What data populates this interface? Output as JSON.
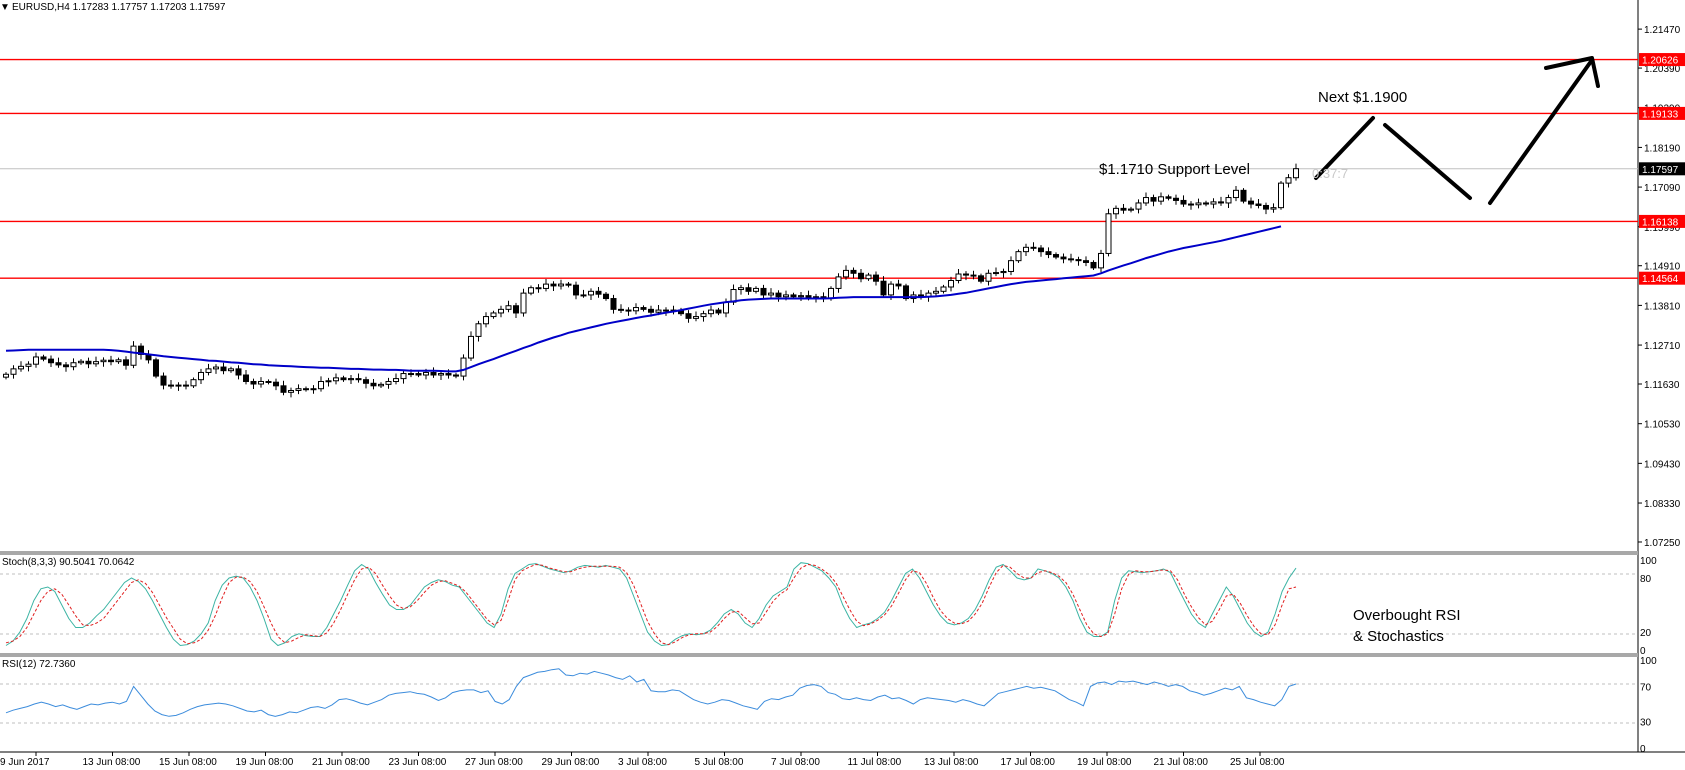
{
  "header": {
    "arrow_glyph": "▼",
    "text": "EURUSD,H4  1.17283 1.17757 1.17203 1.17597"
  },
  "indicators": {
    "stoch": {
      "label": "Stoch(8,3,3) 90.5041 70.0642",
      "main_color": "#3cb4a4",
      "signal_color": "#e02020"
    },
    "rsi": {
      "label": "RSI(12) 72.7360",
      "color": "#3c8cdc"
    }
  },
  "annotations": {
    "next": "Next $1.1900",
    "support": "$1.1710 Support Level",
    "timer": "0:37:7",
    "overbought_line1": "Overbought RSI",
    "overbought_line2": "& Stochastics"
  },
  "chart_data": [
    {
      "type": "candlestick",
      "symbol": "EURUSD",
      "timeframe": "H4",
      "ylim": [
        1.07,
        1.22
      ],
      "y_ticks": [
        "1.21470",
        "1.20390",
        "1.19290",
        "1.18190",
        "1.17090",
        "1.15990",
        "1.14910",
        "1.13810",
        "1.12710",
        "1.11630",
        "1.10530",
        "1.09430",
        "1.08330",
        "1.07250"
      ],
      "x_ticks": [
        "9 Jun 2017",
        "13 Jun 08:00",
        "15 Jun 08:00",
        "19 Jun 08:00",
        "21 Jun 08:00",
        "23 Jun 08:00",
        "27 Jun 08:00",
        "29 Jun 08:00",
        "3 Jul 08:00",
        "5 Jul 08:00",
        "7 Jul 08:00",
        "11 Jul 08:00",
        "13 Jul 08:00",
        "17 Jul 08:00",
        "19 Jul 08:00",
        "21 Jul 08:00",
        "25 Jul 08:00"
      ],
      "current_price": "1.17597",
      "levels": [
        {
          "label": "1.20626",
          "color": "#ff0000"
        },
        {
          "label": "1.19133",
          "color": "#ff0000"
        },
        {
          "label": "1.16138",
          "color": "#ff0000"
        },
        {
          "label": "1.14564",
          "color": "#ff0000"
        }
      ],
      "close": [
        1.119,
        1.1205,
        1.1212,
        1.1218,
        1.1238,
        1.1232,
        1.1222,
        1.1216,
        1.1211,
        1.1222,
        1.1226,
        1.1219,
        1.1225,
        1.1229,
        1.1225,
        1.123,
        1.1215,
        1.1268,
        1.1245,
        1.123,
        1.1185,
        1.116,
        1.1158,
        1.116,
        1.1158,
        1.1175,
        1.1195,
        1.1205,
        1.121,
        1.12,
        1.1205,
        1.1188,
        1.117,
        1.1163,
        1.117,
        1.1168,
        1.1158,
        1.114,
        1.1145,
        1.115,
        1.1148,
        1.115,
        1.117,
        1.1172,
        1.118,
        1.1175,
        1.1178,
        1.1175,
        1.1165,
        1.1158,
        1.1162,
        1.117,
        1.1178,
        1.1192,
        1.1192,
        1.1188,
        1.1195,
        1.1188,
        1.1192,
        1.1188,
        1.1185,
        1.1235,
        1.1295,
        1.133,
        1.135,
        1.136,
        1.137,
        1.138,
        1.136,
        1.1415,
        1.143,
        1.1428,
        1.144,
        1.1435,
        1.144,
        1.1437,
        1.141,
        1.141,
        1.142,
        1.1412,
        1.14,
        1.137,
        1.1368,
        1.1366,
        1.1375,
        1.137,
        1.1362,
        1.1368,
        1.1366,
        1.1368,
        1.1358,
        1.1345,
        1.135,
        1.1358,
        1.1368,
        1.136,
        1.139,
        1.1425,
        1.143,
        1.142,
        1.1428,
        1.141,
        1.1415,
        1.1405,
        1.141,
        1.1405,
        1.1408,
        1.1403,
        1.1405,
        1.14,
        1.1428,
        1.146,
        1.1478,
        1.147,
        1.1455,
        1.1465,
        1.1448,
        1.141,
        1.144,
        1.1435,
        1.14,
        1.141,
        1.1405,
        1.1415,
        1.142,
        1.1432,
        1.145,
        1.1468,
        1.1465,
        1.1463,
        1.1448,
        1.147,
        1.1472,
        1.1475,
        1.1505,
        1.153,
        1.1542,
        1.154,
        1.153,
        1.1522,
        1.1515,
        1.151,
        1.1508,
        1.1505,
        1.15,
        1.1485,
        1.1525,
        1.1635,
        1.165,
        1.1645,
        1.1648,
        1.1665,
        1.168,
        1.167,
        1.1682,
        1.1678,
        1.1672,
        1.1662,
        1.166,
        1.1665,
        1.1662,
        1.1668,
        1.1665,
        1.168,
        1.17,
        1.167,
        1.1662,
        1.1658,
        1.1648,
        1.1652,
        1.172,
        1.1735,
        1.176
      ],
      "ma_color": "#0000c8",
      "ma": [
        1.1255,
        1.1256,
        1.1257,
        1.1258,
        1.1258,
        1.1258,
        1.1258,
        1.1258,
        1.1258,
        1.1258,
        1.1258,
        1.1258,
        1.1258,
        1.1258,
        1.1257,
        1.1255,
        1.1253,
        1.125,
        1.1248,
        1.1245,
        1.1243,
        1.124,
        1.1238,
        1.1236,
        1.1234,
        1.1232,
        1.123,
        1.1228,
        1.1227,
        1.1225,
        1.1223,
        1.1222,
        1.122,
        1.1218,
        1.1217,
        1.1215,
        1.1214,
        1.1213,
        1.1212,
        1.1211,
        1.121,
        1.1209,
        1.1208,
        1.1208,
        1.1207,
        1.1206,
        1.1205,
        1.1205,
        1.1204,
        1.1203,
        1.1203,
        1.1202,
        1.1202,
        1.1201,
        1.12,
        1.12,
        1.12,
        1.12,
        1.1199,
        1.1198,
        1.1198,
        1.1202,
        1.121,
        1.1218,
        1.1225,
        1.1232,
        1.124,
        1.1248,
        1.1255,
        1.1263,
        1.127,
        1.1278,
        1.1285,
        1.1292,
        1.1298,
        1.1305,
        1.131,
        1.1315,
        1.132,
        1.1325,
        1.133,
        1.1334,
        1.1338,
        1.1342,
        1.1346,
        1.135,
        1.1353,
        1.1357,
        1.1361,
        1.1364,
        1.1368,
        1.1372,
        1.1376,
        1.138,
        1.1384,
        1.1387,
        1.139,
        1.1392,
        1.1395,
        1.1397,
        1.1398,
        1.1399,
        1.14,
        1.14,
        1.14,
        1.14,
        1.14,
        1.14,
        1.14,
        1.14,
        1.1401,
        1.1402,
        1.1403,
        1.1404,
        1.1404,
        1.1404,
        1.1404,
        1.1404,
        1.1404,
        1.1404,
        1.1404,
        1.1404,
        1.1404,
        1.1405,
        1.1406,
        1.1408,
        1.141,
        1.1413,
        1.1416,
        1.142,
        1.1424,
        1.1428,
        1.1432,
        1.1436,
        1.144,
        1.1443,
        1.1446,
        1.1448,
        1.145,
        1.1452,
        1.1454,
        1.1456,
        1.1458,
        1.146,
        1.1462,
        1.1464,
        1.147,
        1.1478,
        1.1485,
        1.1492,
        1.1498,
        1.1505,
        1.1512,
        1.1518,
        1.1524,
        1.153,
        1.1535,
        1.154,
        1.1544,
        1.1548,
        1.1552,
        1.1556,
        1.156,
        1.1565,
        1.157,
        1.1575,
        1.158,
        1.1585,
        1.159,
        1.1595,
        1.16
      ]
    },
    {
      "type": "line",
      "name": "Stoch(8,3,3)",
      "ylim": [
        0,
        100
      ],
      "y_ticks": [
        100,
        80,
        20,
        0
      ],
      "series": [
        {
          "values": [
            5,
            10,
            20,
            35,
            55,
            68,
            70,
            65,
            50,
            35,
            25,
            25,
            30,
            38,
            45,
            55,
            65,
            75,
            80,
            76,
            68,
            55,
            40,
            25,
            12,
            5,
            6,
            10,
            18,
            30,
            55,
            72,
            80,
            82,
            80,
            70,
            55,
            35,
            12,
            5,
            8,
            15,
            18,
            16,
            15,
            15,
            25,
            40,
            55,
            72,
            88,
            95,
            90,
            75,
            62,
            50,
            45,
            45,
            50,
            60,
            70,
            75,
            78,
            76,
            72,
            70,
            60,
            50,
            40,
            30,
            25,
            40,
            68,
            85,
            90,
            95,
            96,
            93,
            90,
            88,
            86,
            88,
            92,
            94,
            93,
            92,
            94,
            92,
            90,
            80,
            60,
            40,
            20,
            10,
            5,
            6,
            12,
            16,
            18,
            17,
            18,
            22,
            30,
            40,
            45,
            40,
            30,
            25,
            35,
            50,
            60,
            65,
            70,
            90,
            97,
            96,
            92,
            88,
            80,
            70,
            50,
            35,
            25,
            28,
            30,
            35,
            42,
            55,
            70,
            85,
            90,
            80,
            65,
            50,
            38,
            30,
            28,
            30,
            35,
            45,
            60,
            78,
            92,
            95,
            88,
            80,
            78,
            80,
            90,
            88,
            85,
            80,
            70,
            55,
            35,
            20,
            15,
            15,
            20,
            55,
            80,
            88,
            87,
            86,
            87,
            88,
            90,
            86,
            70,
            55,
            40,
            30,
            25,
            40,
            55,
            70,
            60,
            45,
            30,
            20,
            15,
            20,
            40,
            65,
            80,
            91
          ]
        },
        {
          "values": [
            8,
            10,
            15,
            25,
            40,
            55,
            65,
            68,
            62,
            50,
            38,
            28,
            27,
            30,
            35,
            45,
            55,
            65,
            75,
            78,
            74,
            64,
            50,
            36,
            24,
            12,
            7,
            8,
            12,
            22,
            38,
            58,
            75,
            81,
            81,
            76,
            65,
            48,
            30,
            15,
            8,
            10,
            14,
            17,
            16,
            15,
            19,
            30,
            45,
            62,
            78,
            90,
            92,
            85,
            72,
            60,
            50,
            46,
            48,
            55,
            64,
            72,
            76,
            77,
            74,
            71,
            64,
            54,
            44,
            34,
            28,
            33,
            55,
            78,
            88,
            92,
            95,
            94,
            91,
            89,
            87,
            87,
            90,
            92,
            93,
            93,
            93,
            93,
            92,
            86,
            72,
            52,
            32,
            18,
            8,
            6,
            9,
            14,
            17,
            18,
            18,
            20,
            26,
            35,
            42,
            43,
            36,
            29,
            30,
            42,
            54,
            62,
            67,
            80,
            91,
            95,
            94,
            90,
            84,
            75,
            60,
            45,
            32,
            27,
            29,
            33,
            39,
            49,
            63,
            78,
            88,
            86,
            74,
            58,
            44,
            35,
            30,
            29,
            32,
            40,
            52,
            70,
            86,
            94,
            92,
            85,
            80,
            80,
            86,
            88,
            86,
            82,
            75,
            62,
            45,
            28,
            18,
            15,
            18,
            40,
            68,
            84,
            88,
            87,
            87,
            88,
            89,
            88,
            78,
            62,
            48,
            36,
            28,
            32,
            45,
            60,
            62,
            52,
            38,
            26,
            18,
            17,
            28,
            50,
            68,
            70
          ]
        }
      ]
    },
    {
      "type": "line",
      "name": "RSI(12)",
      "ylim": [
        0,
        100
      ],
      "y_ticks": [
        100,
        70,
        30,
        0
      ],
      "values": [
        40,
        43,
        45,
        47,
        50,
        52,
        50,
        47,
        49,
        46,
        44,
        47,
        50,
        49,
        51,
        52,
        50,
        53,
        70,
        60,
        50,
        42,
        38,
        36,
        37,
        40,
        44,
        47,
        49,
        50,
        51,
        50,
        48,
        45,
        42,
        41,
        43,
        38,
        36,
        38,
        41,
        40,
        43,
        46,
        47,
        45,
        49,
        55,
        56,
        54,
        51,
        49,
        52,
        55,
        60,
        62,
        63,
        64,
        62,
        61,
        58,
        54,
        57,
        63,
        65,
        66,
        66,
        63,
        65,
        53,
        50,
        55,
        70,
        80,
        83,
        86,
        87,
        89,
        90,
        83,
        82,
        85,
        84,
        87,
        85,
        83,
        80,
        78,
        82,
        75,
        78,
        65,
        64,
        64,
        66,
        65,
        60,
        55,
        52,
        50,
        52,
        55,
        54,
        51,
        48,
        46,
        44,
        53,
        56,
        55,
        58,
        60,
        68,
        71,
        72,
        70,
        63,
        61,
        56,
        55,
        57,
        55,
        54,
        58,
        60,
        56,
        57,
        54,
        50,
        55,
        57,
        56,
        55,
        54,
        52,
        55,
        53,
        50,
        48,
        55,
        62,
        64,
        66,
        68,
        70,
        68,
        69,
        67,
        65,
        60,
        55,
        52,
        48,
        70,
        74,
        75,
        72,
        76,
        75,
        76,
        74,
        72,
        75,
        73,
        70,
        72,
        70,
        65,
        63,
        60,
        62,
        65,
        68,
        66,
        70,
        57,
        55,
        52,
        50,
        48,
        55,
        70,
        72.7
      ]
    }
  ]
}
